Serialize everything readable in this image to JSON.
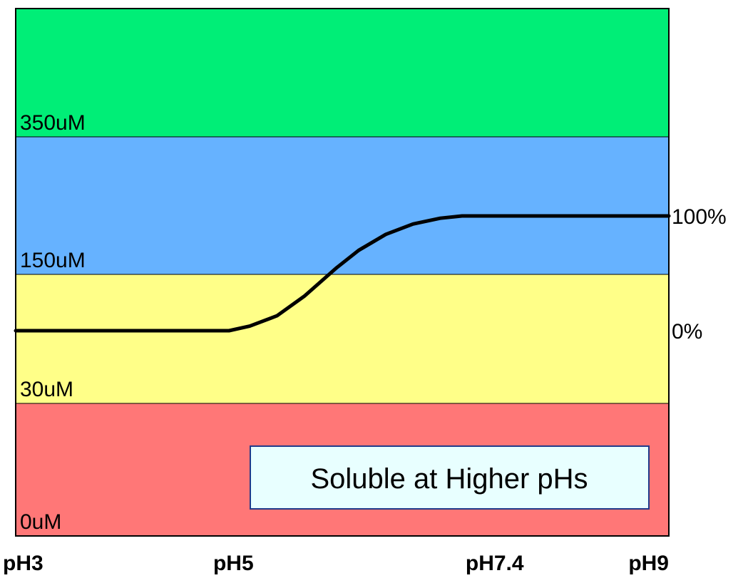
{
  "chart_data": {
    "type": "line",
    "x_axis": {
      "ticks": [
        {
          "value": 3,
          "label": "pH3"
        },
        {
          "value": 5,
          "label": "pH5"
        },
        {
          "value": 7.4,
          "label": "pH7.4"
        },
        {
          "value": 9,
          "label": "pH9"
        }
      ],
      "range": [
        3,
        9
      ]
    },
    "bands": [
      {
        "label": "0uM",
        "color": "#ff7777"
      },
      {
        "label": "30uM",
        "color": "#ffff88"
      },
      {
        "label": "150uM",
        "color": "#66b2ff"
      },
      {
        "label": "350uM",
        "color": "#00ee77"
      }
    ],
    "right_labels": [
      {
        "label": "100%",
        "value": 100
      },
      {
        "label": "0%",
        "value": 0
      }
    ],
    "series": [
      {
        "color": "#000000",
        "points": [
          {
            "x": 3.0,
            "y": 0
          },
          {
            "x": 4.96,
            "y": 0
          },
          {
            "x": 5.15,
            "y": 4
          },
          {
            "x": 5.4,
            "y": 13
          },
          {
            "x": 5.65,
            "y": 30
          },
          {
            "x": 5.95,
            "y": 55
          },
          {
            "x": 6.15,
            "y": 70
          },
          {
            "x": 6.4,
            "y": 84
          },
          {
            "x": 6.65,
            "y": 93
          },
          {
            "x": 6.9,
            "y": 98
          },
          {
            "x": 7.1,
            "y": 100
          },
          {
            "x": 9.0,
            "y": 100
          }
        ]
      }
    ],
    "annotation": "Soluble at Higher pHs"
  }
}
